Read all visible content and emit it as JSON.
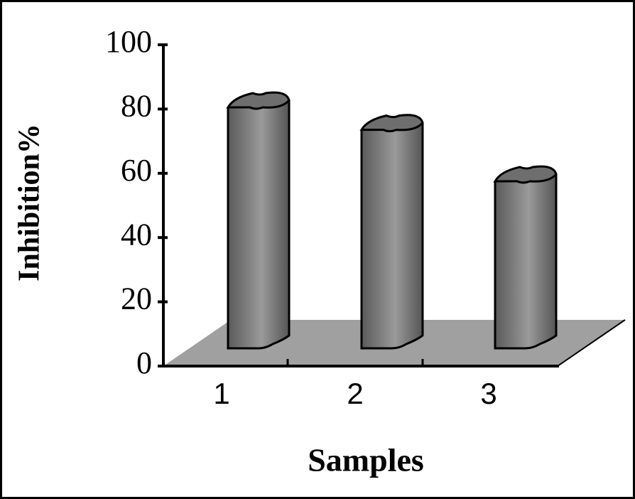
{
  "chart_data": {
    "type": "bar3d",
    "x_label": "Samples",
    "y_label": "Inhibition%",
    "categories": [
      "1",
      "2",
      "3"
    ],
    "values": [
      75,
      68,
      52
    ],
    "color": "#7a7a7a",
    "ylim": [
      0,
      100
    ],
    "yticks": [
      0,
      20,
      40,
      60,
      80,
      100
    ]
  }
}
